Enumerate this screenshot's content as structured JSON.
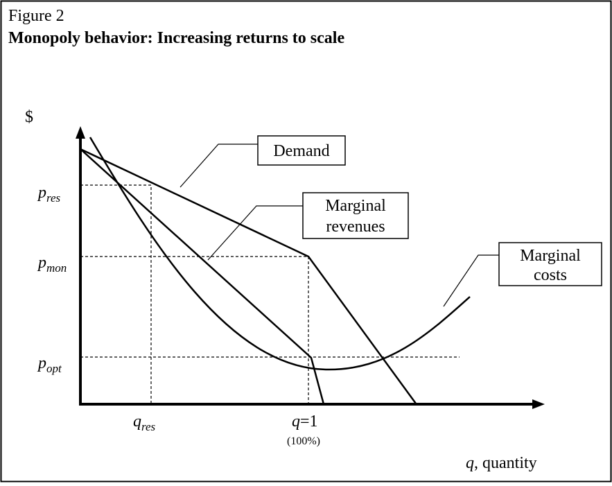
{
  "figure_label": "Figure 2",
  "title": "Monopoly behavior: Increasing returns to scale",
  "y_axis_label": "$",
  "x_axis_label": {
    "base": "q",
    "rest": ", quantity"
  },
  "price_labels": [
    {
      "base": "p",
      "sub": "res"
    },
    {
      "base": "p",
      "sub": "mon"
    },
    {
      "base": "p",
      "sub": "opt"
    }
  ],
  "quantity_labels": [
    {
      "base": "q",
      "sub": "res"
    },
    {
      "base": "q",
      "rest": "=1",
      "note": "(100%)"
    }
  ],
  "curve_labels": [
    {
      "lines": [
        "Demand"
      ]
    },
    {
      "lines": [
        "Marginal",
        "revenues"
      ]
    },
    {
      "lines": [
        "Marginal",
        "costs"
      ]
    }
  ]
}
